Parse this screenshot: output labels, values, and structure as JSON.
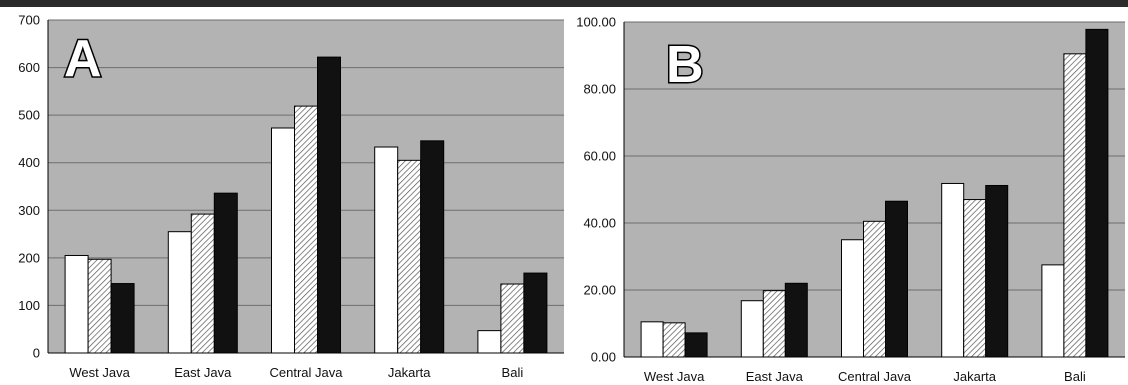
{
  "chart_data": [
    {
      "type": "bar",
      "panel_label": "A",
      "categories": [
        "West Java",
        "East Java",
        "Central Java",
        "Jakarta",
        "Bali"
      ],
      "series": [
        {
          "values": [
            205,
            255,
            473,
            433,
            47
          ],
          "fill": "#ffffff"
        },
        {
          "values": [
            197,
            292,
            519,
            405,
            145
          ],
          "fill": "hatched"
        },
        {
          "values": [
            146,
            336,
            622,
            446,
            168
          ],
          "fill": "#111111"
        }
      ],
      "yticks": [
        "0",
        "100",
        "200",
        "300",
        "400",
        "500",
        "600",
        "700"
      ],
      "ylim": [
        0,
        700
      ],
      "grid": true,
      "plot_background": "#b3b3b3"
    },
    {
      "type": "bar",
      "panel_label": "B",
      "categories": [
        "West Java",
        "East Java",
        "Central Java",
        "Jakarta",
        "Bali"
      ],
      "series": [
        {
          "values": [
            10.5,
            16.8,
            35.0,
            51.8,
            27.5
          ],
          "fill": "#ffffff"
        },
        {
          "values": [
            10.2,
            19.8,
            40.5,
            47.0,
            90.5
          ],
          "fill": "hatched"
        },
        {
          "values": [
            7.2,
            22.0,
            46.5,
            51.2,
            97.8
          ],
          "fill": "#111111"
        }
      ],
      "yticks": [
        "0.00",
        "20.00",
        "40.00",
        "60.00",
        "80.00",
        "100.00"
      ],
      "ylim": [
        0,
        100
      ],
      "grid": true,
      "plot_background": "#b3b3b3"
    }
  ]
}
